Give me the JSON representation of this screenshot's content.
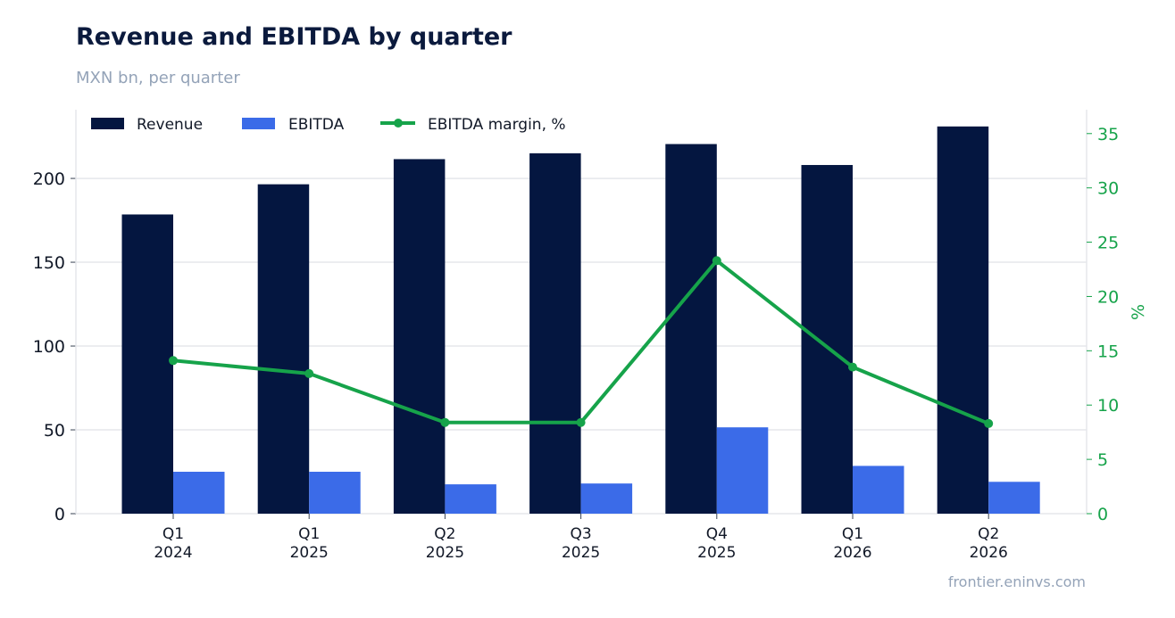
{
  "header": {
    "title": "Revenue and EBITDA by quarter",
    "subtitle": "MXN bn, per quarter"
  },
  "footer": {
    "source": "frontier.eninvs.com"
  },
  "colors": {
    "revenue": "#041640",
    "ebitda": "#3b6be8",
    "margin": "#16a34a",
    "grid": "#e5e7eb",
    "axis_text": "#111827"
  },
  "chart_data": {
    "type": "bar",
    "categories": [
      [
        "Q1",
        "2024"
      ],
      [
        "Q1",
        "2025"
      ],
      [
        "Q2",
        "2025"
      ],
      [
        "Q3",
        "2025"
      ],
      [
        "Q4",
        "2025"
      ],
      [
        "Q1",
        "2026"
      ],
      [
        "Q2",
        "2026"
      ]
    ],
    "series": [
      {
        "name": "Revenue",
        "type": "bar",
        "axis": "left",
        "values": [
          178.5,
          196.5,
          211.5,
          215,
          220.5,
          208,
          231
        ]
      },
      {
        "name": "EBITDA",
        "type": "bar",
        "axis": "left",
        "values": [
          25,
          25,
          17.5,
          18,
          51.5,
          28.5,
          19
        ]
      },
      {
        "name": "EBITDA margin, %",
        "type": "line",
        "axis": "right",
        "values": [
          14.1,
          12.9,
          8.4,
          8.4,
          23.3,
          13.5,
          8.3
        ]
      }
    ],
    "ylim": [
      0,
      241
    ],
    "yticks": [
      0,
      50,
      100,
      150,
      200
    ],
    "y2lim": [
      0,
      37.2
    ],
    "y2ticks": [
      0,
      5,
      10,
      15,
      20,
      25,
      30,
      35
    ],
    "y2label": "%",
    "legend": "top-left",
    "grid": true
  }
}
